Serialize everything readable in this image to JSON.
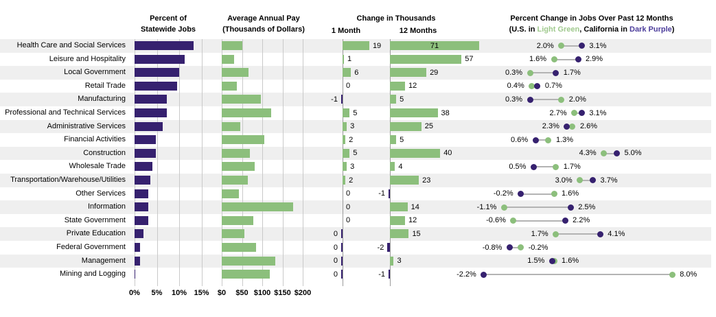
{
  "headers": {
    "panel_percent": {
      "line1": "Percent of",
      "line2": "Statewide Jobs"
    },
    "panel_pay": {
      "line1": "Average Annual Pay",
      "line2": "(Thousands of Dollars)"
    },
    "panel_change": {
      "title": "Change in Thousands",
      "col_1month": "1 Month",
      "col_12months": "12 Months"
    },
    "panel_pct_change": {
      "title": "Percent Change in Jobs Over Past 12 Months",
      "subtitle_parts": [
        {
          "text": "(U.S. in ",
          "color": "black"
        },
        {
          "text": "Light Green",
          "color": "green"
        },
        {
          "text": ", California in ",
          "color": "black"
        },
        {
          "text": "Dark Purple",
          "color": "purple"
        },
        {
          "text": ")",
          "color": "black"
        }
      ]
    }
  },
  "colors": {
    "dark_purple": "#36216F",
    "light_green": "#8CBF7C",
    "green_text": "#9FC98D",
    "purple_text": "#4C3D9B",
    "row_stripe": "#EFEFEF",
    "gridline": "#C9C9C9",
    "axis_line": "#9B9B9B",
    "connector": "#B3B3B3"
  },
  "chart_data": [
    {
      "type": "bar",
      "title": "Percent of Statewide Jobs",
      "categories": [
        "Health Care and Social Services",
        "Leisure and Hospitality",
        "Local Government",
        "Retail Trade",
        "Manufacturing",
        "Professional and Technical Services",
        "Administrative Services",
        "Financial Activities",
        "Construction",
        "Wholesale Trade",
        "Transportation/Warehouse/Utilities",
        "Other Services",
        "Information",
        "State Government",
        "Private Education",
        "Federal Government",
        "Management",
        "Mining and Logging"
      ],
      "values": [
        13.2,
        11.3,
        10.0,
        9.6,
        7.3,
        7.2,
        6.3,
        4.7,
        4.8,
        4.0,
        3.5,
        3.1,
        3.0,
        3.0,
        2.0,
        1.3,
        1.2,
        0.1
      ],
      "xlim": [
        0,
        15
      ],
      "tick_labels": [
        "0%",
        "5%",
        "10%",
        "15%"
      ],
      "bar_color": "dark_purple"
    },
    {
      "type": "bar",
      "title": "Average Annual Pay (Thousands of Dollars)",
      "values": [
        51,
        30,
        66,
        37,
        97,
        122,
        45,
        105,
        70,
        81,
        64,
        42,
        176,
        78,
        56,
        84,
        133,
        119
      ],
      "xlim": [
        0,
        200
      ],
      "tick_labels": [
        "$0",
        "$50",
        "$100",
        "$150",
        "$200"
      ],
      "bar_color": "light_green"
    },
    {
      "type": "bar",
      "title": "Change in Thousands - 1 Month",
      "values": [
        19,
        1,
        6,
        0,
        -1,
        5,
        3,
        2,
        5,
        3,
        2,
        0,
        0,
        0,
        0,
        0,
        0,
        0
      ],
      "labels": [
        "19",
        "1",
        "6",
        "0",
        "-1",
        "5",
        "3",
        "2",
        "5",
        "3",
        "2",
        "0",
        "0",
        "0",
        "0",
        "0",
        "0",
        "0"
      ],
      "negative_rows": [
        4,
        14,
        15,
        16,
        17
      ],
      "bar_color_positive": "light_green",
      "bar_color_negative": "dark_purple"
    },
    {
      "type": "bar",
      "title": "Change in Thousands - 12 Months",
      "values": [
        71,
        57,
        29,
        12,
        5,
        38,
        25,
        5,
        40,
        4,
        23,
        -1,
        14,
        12,
        15,
        -2,
        3,
        -1
      ],
      "labels": [
        "71",
        "57",
        "29",
        "12",
        "5",
        "38",
        "25",
        "5",
        "40",
        "4",
        "23",
        "-1",
        "14",
        "12",
        "15",
        "-2",
        "3",
        "-1"
      ],
      "negative_rows": [
        11,
        15,
        17
      ],
      "label_inside_rows": [
        0
      ],
      "bar_color_positive": "light_green",
      "bar_color_negative": "dark_purple"
    },
    {
      "type": "dumbbell",
      "title": "Percent Change in Jobs Over Past 12 Months",
      "value_suffix": "%",
      "series": [
        {
          "name": "U.S.",
          "color": "light_green",
          "values": [
            2.0,
            1.6,
            0.3,
            0.4,
            2.0,
            2.7,
            2.6,
            1.3,
            4.3,
            1.7,
            3.0,
            1.6,
            -1.1,
            -0.6,
            1.7,
            -0.2,
            1.6,
            8.0
          ]
        },
        {
          "name": "California",
          "color": "dark_purple",
          "values": [
            3.1,
            2.9,
            1.7,
            0.7,
            0.3,
            3.1,
            2.3,
            0.6,
            5.0,
            0.5,
            3.7,
            -0.2,
            2.5,
            2.2,
            4.1,
            -0.8,
            1.5,
            -2.2
          ]
        }
      ]
    }
  ]
}
